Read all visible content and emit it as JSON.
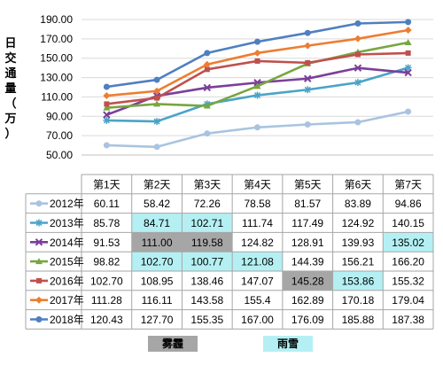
{
  "chart_data": {
    "type": "line",
    "ylabel": "日交通量（万）",
    "ylim": [
      50,
      190
    ],
    "yticks": [
      "190.00",
      "170.00",
      "150.00",
      "130.00",
      "110.00",
      "90.00",
      "70.00",
      "50.00"
    ],
    "categories": [
      "第1天",
      "第2天",
      "第3天",
      "第4天",
      "第5天",
      "第6天",
      "第7天"
    ],
    "grid": true,
    "legend": "table-left",
    "series": [
      {
        "name": "2012年",
        "color": "#a9c4e0",
        "marker": "circle",
        "values": [
          60.11,
          58.42,
          72.26,
          78.58,
          81.57,
          83.89,
          94.86
        ]
      },
      {
        "name": "2013年",
        "color": "#4aa3c8",
        "marker": "star",
        "values": [
          85.78,
          84.71,
          102.71,
          111.74,
          117.49,
          124.92,
          140.15
        ]
      },
      {
        "name": "2014年",
        "color": "#7b3f99",
        "marker": "x",
        "values": [
          91.53,
          111.0,
          119.58,
          124.82,
          128.91,
          139.93,
          135.02
        ]
      },
      {
        "name": "2015年",
        "color": "#78a640",
        "marker": "triangle",
        "values": [
          98.82,
          102.7,
          100.77,
          121.08,
          144.39,
          156.21,
          166.2
        ]
      },
      {
        "name": "2016年",
        "color": "#c0504d",
        "marker": "square",
        "values": [
          102.7,
          108.95,
          138.46,
          147.07,
          145.28,
          153.86,
          155.32
        ]
      },
      {
        "name": "2017年",
        "color": "#ed7d31",
        "marker": "diamond",
        "values": [
          111.28,
          116.11,
          143.58,
          155.4,
          162.89,
          170.18,
          179.04
        ]
      },
      {
        "name": "2018年",
        "color": "#4f7fc0",
        "marker": "circle",
        "values": [
          120.43,
          127.7,
          155.35,
          167.0,
          176.09,
          185.88,
          187.38
        ]
      }
    ],
    "table": {
      "rows": [
        [
          "60.11",
          "58.42",
          "72.26",
          "78.58",
          "81.57",
          "83.89",
          "94.86"
        ],
        [
          "85.78",
          "84.71",
          "102.71",
          "111.74",
          "117.49",
          "124.92",
          "140.15"
        ],
        [
          "91.53",
          "111.00",
          "119.58",
          "124.82",
          "128.91",
          "139.93",
          "135.02"
        ],
        [
          "98.82",
          "102.70",
          "100.77",
          "121.08",
          "144.39",
          "156.21",
          "166.20"
        ],
        [
          "102.70",
          "108.95",
          "138.46",
          "147.07",
          "145.28",
          "153.86",
          "155.32"
        ],
        [
          "111.28",
          "116.11",
          "143.58",
          "155.4",
          "162.89",
          "170.18",
          "179.04"
        ],
        [
          "120.43",
          "127.70",
          "155.35",
          "167.00",
          "176.09",
          "185.88",
          "187.38"
        ]
      ],
      "highlights": {
        "fog": [
          [
            2,
            1
          ],
          [
            2,
            2
          ],
          [
            4,
            4
          ]
        ],
        "snow": [
          [
            1,
            1
          ],
          [
            1,
            2
          ],
          [
            3,
            1
          ],
          [
            3,
            2
          ],
          [
            3,
            3
          ],
          [
            2,
            6
          ],
          [
            4,
            5
          ]
        ]
      },
      "colors": {
        "fog": "#a6a6a6",
        "snow": "#b4f0f3"
      }
    }
  },
  "legend": {
    "fog_label": "雾霾",
    "snow_label": "雨雪"
  }
}
